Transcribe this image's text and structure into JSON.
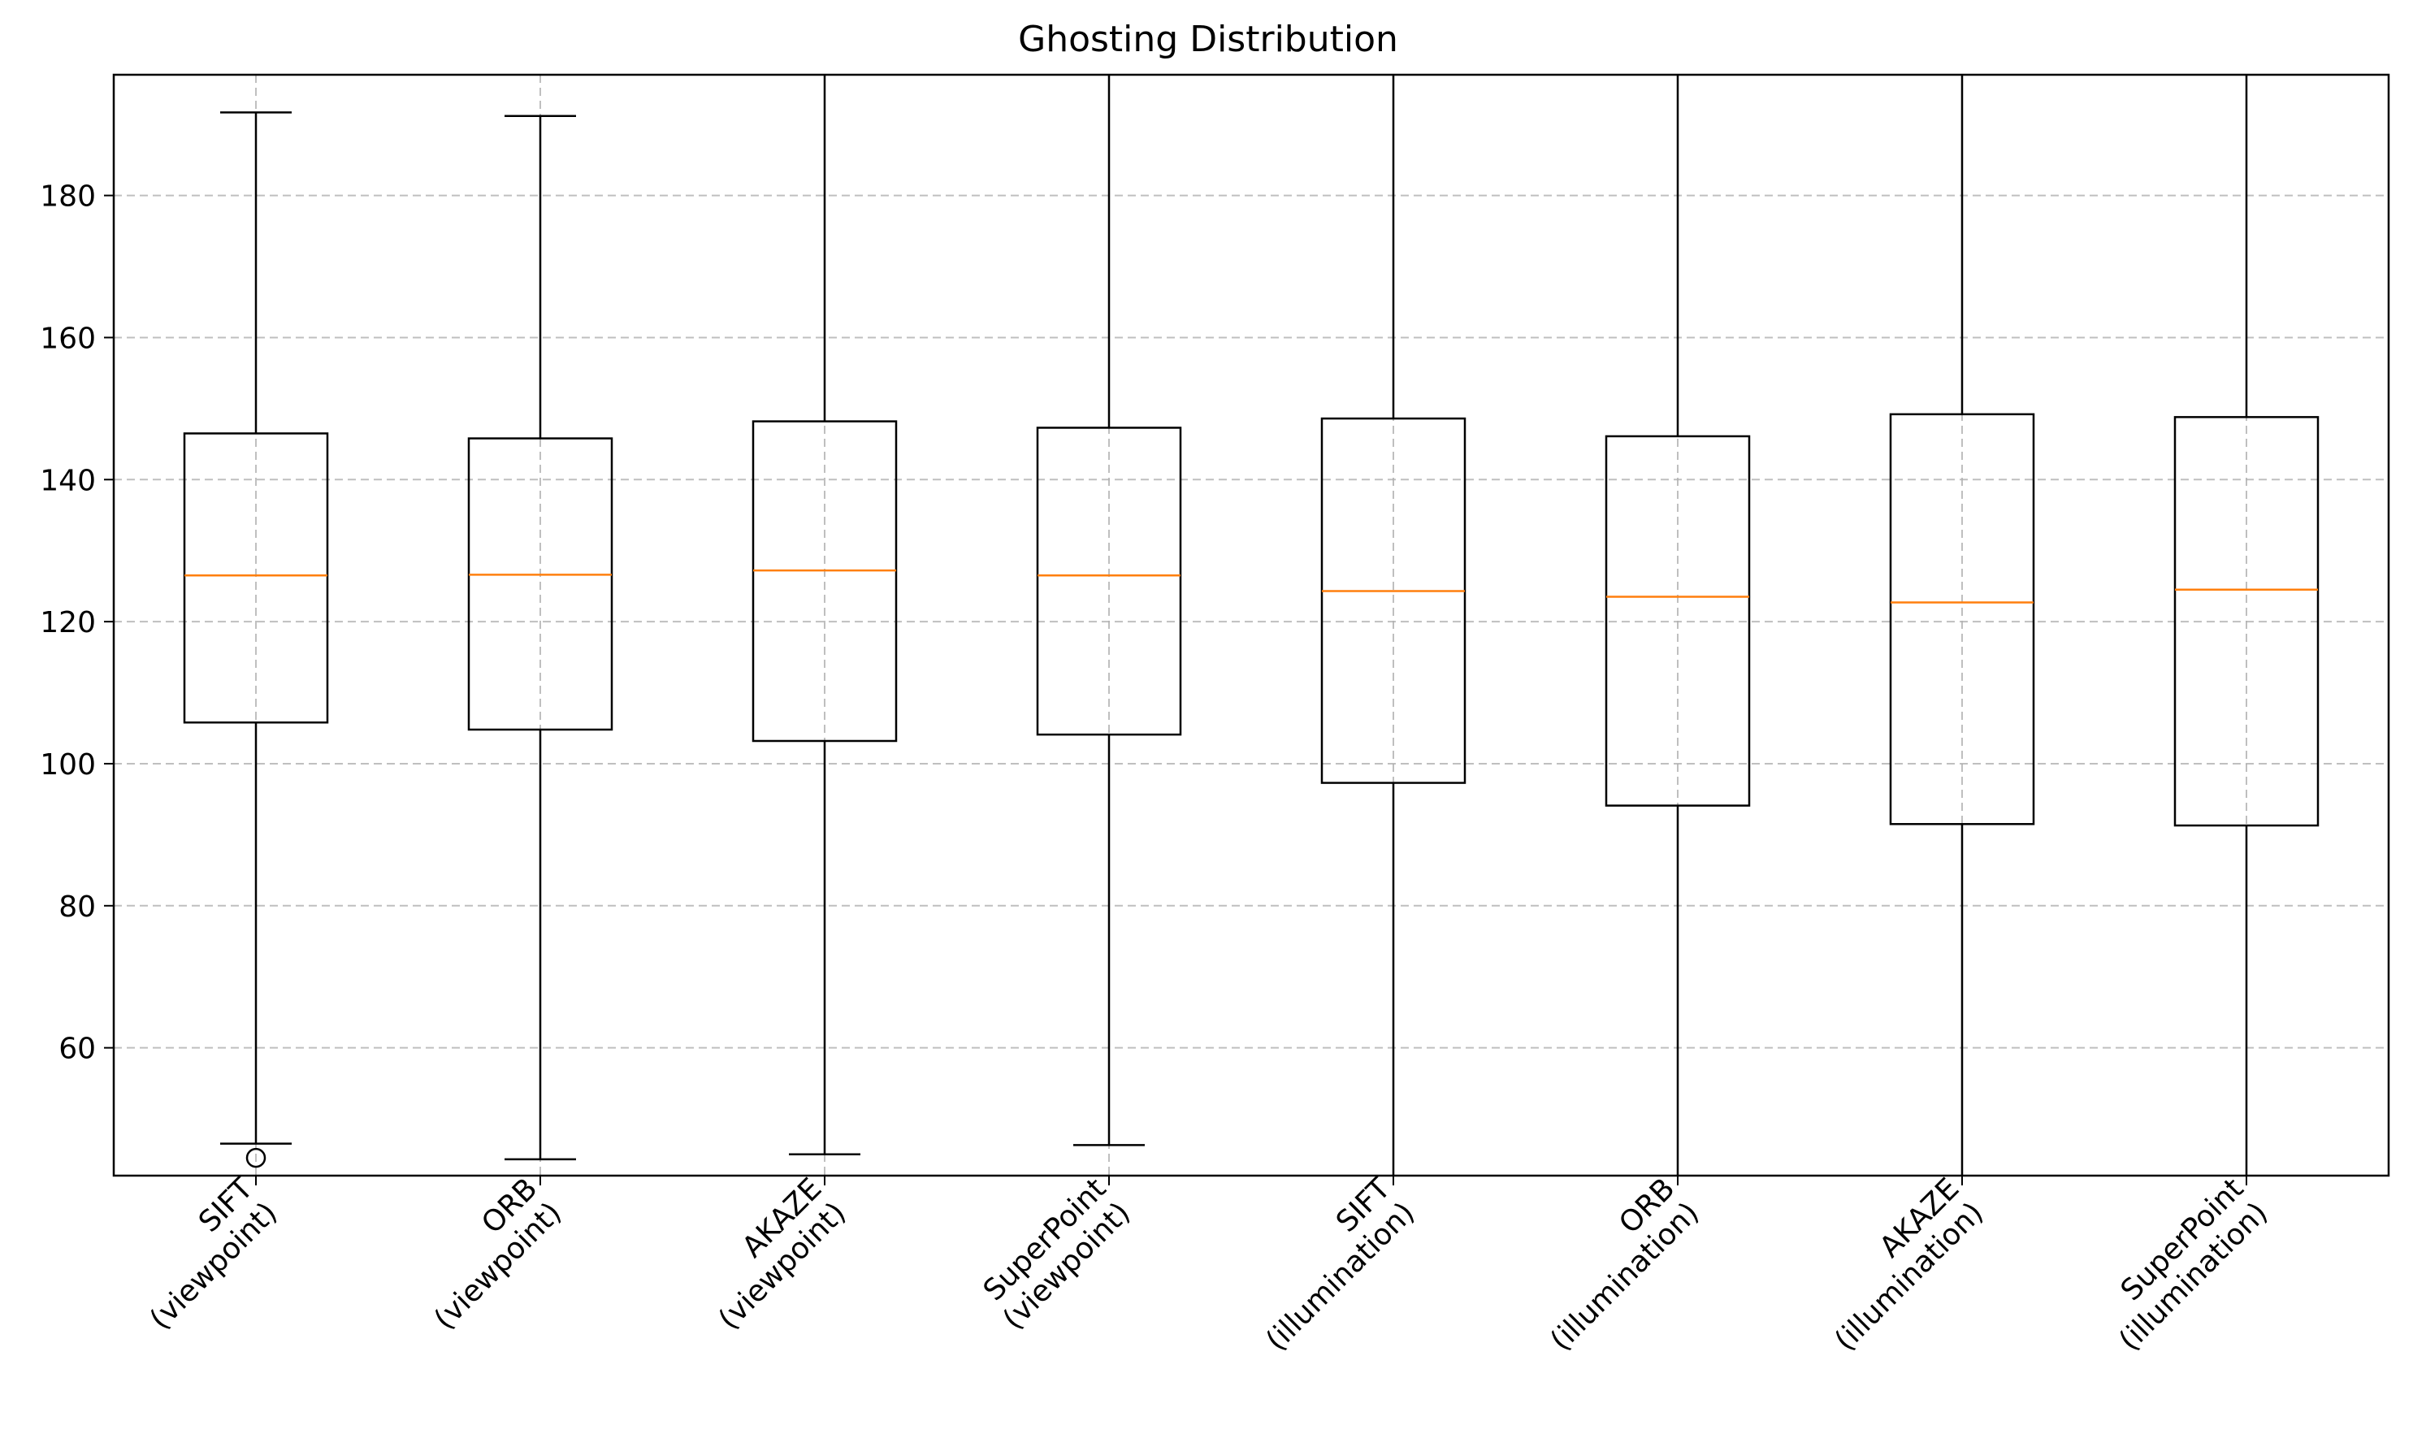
{
  "chart_data": {
    "type": "box",
    "title": "Ghosting Distribution",
    "xlabel": "",
    "ylabel": "",
    "ylim": [
      42,
      197
    ],
    "yticks": [
      60,
      80,
      100,
      120,
      140,
      160,
      180
    ],
    "grid": true,
    "categories": [
      [
        "SIFT",
        "(viewpoint)"
      ],
      [
        "ORB",
        "(viewpoint)"
      ],
      [
        "AKAZE",
        "(viewpoint)"
      ],
      [
        "SuperPoint",
        "(viewpoint)"
      ],
      [
        "SIFT",
        "(illumination)"
      ],
      [
        "ORB",
        "(illumination)"
      ],
      [
        "AKAZE",
        "(illumination)"
      ],
      [
        "SuperPoint",
        "(illumination)"
      ]
    ],
    "boxes": [
      {
        "whisker_low": 46.5,
        "q1": 105.8,
        "median": 126.5,
        "q3": 146.5,
        "whisker_high": 191.7,
        "outliers": [
          44.5
        ]
      },
      {
        "whisker_low": 44.3,
        "q1": 104.8,
        "median": 126.6,
        "q3": 145.8,
        "whisker_high": 191.2,
        "outliers": []
      },
      {
        "whisker_low": 45.0,
        "q1": 103.2,
        "median": 127.2,
        "q3": 148.2,
        "whisker_high": 198.0,
        "outliers": []
      },
      {
        "whisker_low": 46.3,
        "q1": 104.1,
        "median": 126.5,
        "q3": 147.3,
        "whisker_high": 198.0,
        "outliers": []
      },
      {
        "whisker_low": 41.0,
        "q1": 97.3,
        "median": 124.3,
        "q3": 148.6,
        "whisker_high": 198.0,
        "outliers": []
      },
      {
        "whisker_low": 41.0,
        "q1": 94.1,
        "median": 123.5,
        "q3": 146.1,
        "whisker_high": 198.0,
        "outliers": []
      },
      {
        "whisker_low": 41.0,
        "q1": 91.5,
        "median": 122.7,
        "q3": 149.2,
        "whisker_high": 198.0,
        "outliers": []
      },
      {
        "whisker_low": 41.0,
        "q1": 91.3,
        "median": 124.5,
        "q3": 148.8,
        "whisker_high": 198.0,
        "outliers": []
      }
    ],
    "colors": {
      "box": "#000000",
      "median": "#ff7f0e",
      "grid": "#b0b0b0"
    }
  }
}
